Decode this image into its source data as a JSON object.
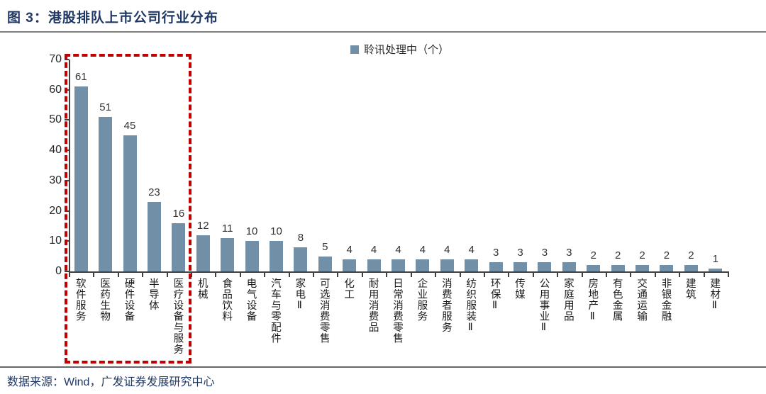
{
  "figure": {
    "title": "图 3：港股排队上市公司行业分布",
    "source": "数据来源：Wind，广发证券发展研究中心"
  },
  "legend": {
    "label": "聆讯处理中（个）"
  },
  "colors": {
    "bar": "#7190A8",
    "title_text": "#1F3864",
    "highlight_box": "#C00000",
    "axis": "#404040",
    "tick_text": "#262626"
  },
  "chart_data": {
    "type": "bar",
    "title": "图 3：港股排队上市公司行业分布",
    "legend_entries": [
      "聆讯处理中（个）"
    ],
    "legend_position": "top-center",
    "grid": false,
    "data_labels": true,
    "ylim": [
      0,
      70
    ],
    "yticks": [
      0,
      10,
      20,
      30,
      40,
      50,
      60,
      70
    ],
    "xlabel": "",
    "ylabel": "",
    "categories": [
      "软件服务",
      "医药生物",
      "硬件设备",
      "半导体",
      "医疗设备与服务",
      "机械",
      "食品饮料",
      "电气设备",
      "汽车与零配件",
      "家电Ⅱ",
      "可选消费零售",
      "化工",
      "耐用消费品",
      "日常消费零售",
      "企业服务",
      "消费者服务",
      "纺织服装Ⅱ",
      "环保Ⅱ",
      "传媒",
      "公用事业Ⅱ",
      "家庭用品",
      "房地产Ⅱ",
      "有色金属",
      "交通运输",
      "非银金融",
      "建筑",
      "建材Ⅱ"
    ],
    "values": [
      61,
      51,
      45,
      23,
      16,
      12,
      11,
      10,
      10,
      8,
      5,
      4,
      4,
      4,
      4,
      4,
      4,
      3,
      3,
      3,
      3,
      2,
      2,
      2,
      2,
      2,
      1
    ],
    "highlight_box": {
      "style": "red-dashed",
      "categories": [
        "软件服务",
        "医药生物",
        "硬件设备",
        "半导体",
        "医疗设备与服务"
      ]
    }
  }
}
